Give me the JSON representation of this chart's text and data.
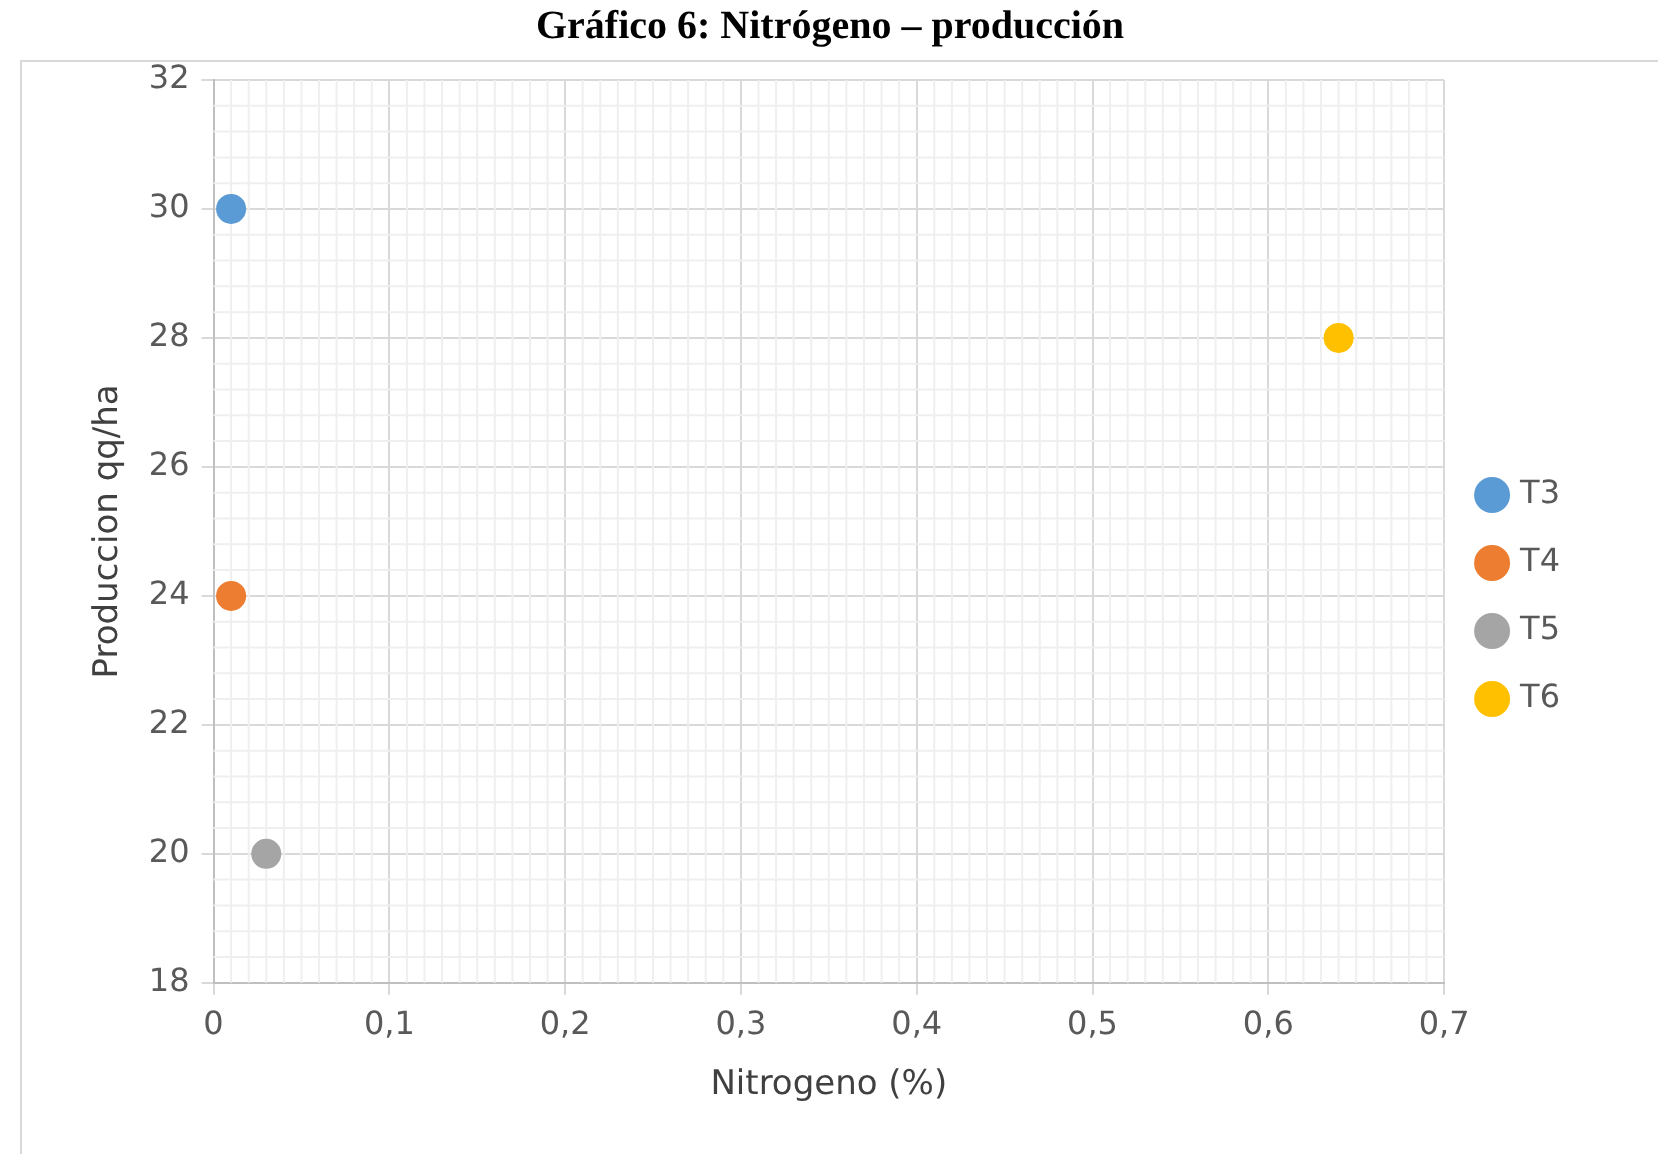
{
  "chart_data": {
    "type": "scatter",
    "title": "Gráfico 6: Nitrógeno – producción",
    "xlabel": "Nitrogeno (%)",
    "ylabel": "Produccion qq/ha",
    "series": [
      {
        "name": "T3",
        "color": "#5b9bd5",
        "x": [
          0.01
        ],
        "values": [
          30
        ]
      },
      {
        "name": "T4",
        "color": "#ed7d31",
        "x": [
          0.01
        ],
        "values": [
          24
        ]
      },
      {
        "name": "T5",
        "color": "#a5a5a5",
        "x": [
          0.03
        ],
        "values": [
          20
        ]
      },
      {
        "name": "T6",
        "color": "#ffc000",
        "x": [
          0.64
        ],
        "values": [
          28
        ]
      }
    ],
    "xlim": [
      0,
      0.7
    ],
    "xticks": [
      {
        "value": 0,
        "label": "0"
      },
      {
        "value": 0.1,
        "label": "0,1"
      },
      {
        "value": 0.2,
        "label": "0,2"
      },
      {
        "value": 0.3,
        "label": "0,3"
      },
      {
        "value": 0.4,
        "label": "0,4"
      },
      {
        "value": 0.5,
        "label": "0,5"
      },
      {
        "value": 0.6,
        "label": "0,6"
      },
      {
        "value": 0.7,
        "label": "0,7"
      }
    ],
    "ylim": [
      18,
      32
    ],
    "yticks": [
      18,
      20,
      22,
      24,
      26,
      28,
      30,
      32
    ],
    "grid": true,
    "legend": "right",
    "marker": "circle"
  }
}
